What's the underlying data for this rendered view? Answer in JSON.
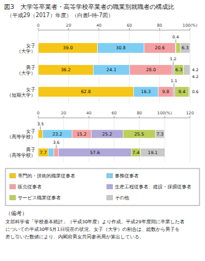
{
  "chart_data": [
    {
      "type": "bar",
      "orientation": "horizontal",
      "stacked": true,
      "title": "図3　大学等卒業者・高等学校卒業者の職業別就職者の構成比",
      "subtitle": "（平成29（2017）年度）（白書I-特-7図）",
      "categories": [
        "女子\n（大学）",
        "男子\n（大学）",
        "女子\n（短期大学）"
      ],
      "series": [
        {
          "name": "専門的・技術的職業従事者",
          "color": "#F5C518",
          "values": [
            39.0,
            36.2,
            62.8
          ],
          "value_labels": [
            "39.0",
            "36.2",
            "62.8"
          ]
        },
        {
          "name": "事務従事者",
          "color": "#7ECEF4",
          "values": [
            30.8,
            24.1,
            16.3
          ],
          "value_labels": [
            "30.8",
            "24.1",
            "16.3"
          ]
        },
        {
          "name": "販売従事者",
          "color": "#F4A0A0",
          "values": [
            20.6,
            28.0,
            9.8
          ],
          "value_labels": [
            "20.6",
            "28.0",
            "9.8"
          ]
        },
        {
          "name": "生産工程従事者、建設・採掘従事者",
          "color": "#B0A8D8",
          "values": [
            0.4,
            1.2,
            1.1
          ],
          "value_labels": [
            "0.4",
            "1.2",
            "1.1"
          ]
        },
        {
          "name": "サービス職業従事者",
          "color": "#BBCF5A",
          "values": [
            2.9,
            6.3,
            9.4
          ],
          "value_labels": [
            null,
            "6.3",
            "9.4"
          ]
        },
        {
          "name": "その他",
          "color": "#C8C8C8",
          "values": [
            6.3,
            4.2,
            0.6
          ],
          "value_labels": [
            "6.3",
            "4.2",
            "0.6"
          ]
        }
      ],
      "xlim": [
        0,
        100
      ],
      "xticks": [
        0,
        20,
        40,
        60,
        80,
        {
          "value": 100,
          "label": "100(%)"
        }
      ],
      "grid": true,
      "data_labels": true,
      "legend": "bottom",
      "annotations": [
        {
          "text": "4.2"
        }
      ],
      "notes": [
        "（備考）",
        "文部科学省「学校基本統計」（平成30年度）より作成。平成29年度間に卒業した者",
        "についての平成30年5月1日現在の状況。女子（大学）の割合は、総数から男子を",
        "差し引いた数値により、内閣府男女共同参画局が算出している。"
      ]
    },
    {
      "type": "bar",
      "orientation": "horizontal",
      "stacked": true,
      "categories": [
        "女子\n（高等学校）",
        "男子\n（高等学校）"
      ],
      "series": [
        {
          "color": "#F5C518",
          "values": [
            3.5,
            7.7
          ],
          "value_labels": [
            "3.5",
            "7.7"
          ]
        },
        {
          "color": "#7ECEF4",
          "values": [
            23.2,
            4.7
          ],
          "value_labels": [
            "23.2",
            null
          ]
        },
        {
          "color": "#F4A0A0",
          "values": [
            15.2,
            3.6
          ],
          "value_labels": [
            "15.2",
            "3.6"
          ]
        },
        {
          "color": "#B0A8D8",
          "values": [
            25.2,
            57.6
          ],
          "value_labels": [
            "25.2",
            "57.6"
          ]
        },
        {
          "color": "#BBCF5A",
          "values": [
            25.5,
            7.4
          ],
          "value_labels": [
            "25.5",
            "7.4"
          ]
        },
        {
          "color": "#C8C8C8",
          "values": [
            7.3,
            19.1
          ],
          "value_labels": [
            "7.3",
            "19.1"
          ]
        }
      ],
      "xlim": [
        0,
        120
      ],
      "xticks": [
        0,
        20,
        40,
        60,
        80,
        {
          "value": 100,
          "label": "100(%)"
        },
        120
      ],
      "grid": true,
      "data_labels": true
    }
  ]
}
